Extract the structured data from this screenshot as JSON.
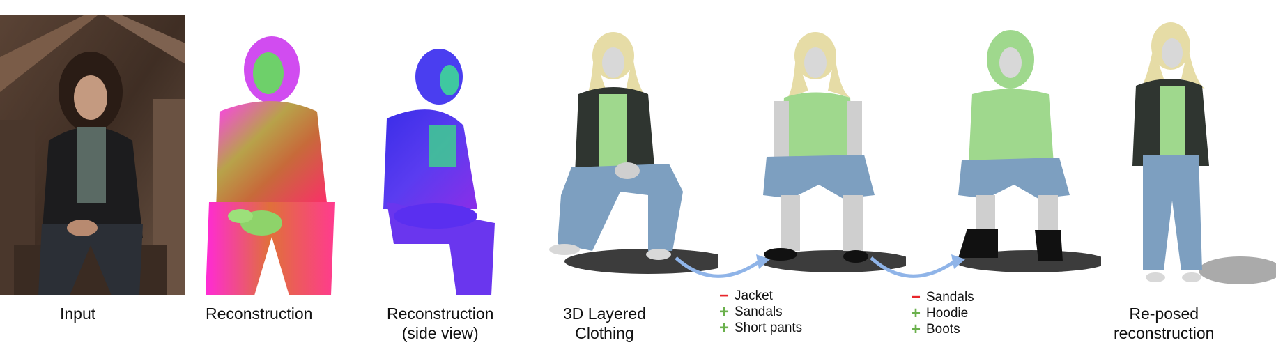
{
  "captions": {
    "input": "Input",
    "reconstruction": "Reconstruction",
    "side_line1": "Reconstruction",
    "side_line2": "(side view)",
    "layered_line1": "3D Layered",
    "layered_line2": "Clothing",
    "reposed_line1": "Re-posed",
    "reposed_line2": "reconstruction"
  },
  "edits_1": [
    {
      "sign": "−",
      "kind": "remove",
      "label": "Jacket"
    },
    {
      "sign": "+",
      "kind": "add",
      "label": "Sandals"
    },
    {
      "sign": "+",
      "kind": "add",
      "label": "Short pants"
    }
  ],
  "edits_2": [
    {
      "sign": "−",
      "kind": "remove",
      "label": "Sandals"
    },
    {
      "sign": "+",
      "kind": "add",
      "label": "Hoodie"
    },
    {
      "sign": "+",
      "kind": "add",
      "label": "Boots"
    }
  ],
  "colors": {
    "hair": "#e6dca6",
    "jacket": "#2f3530",
    "shirt": "#9fd88d",
    "jeans": "#7d9fc0",
    "skin": "#cfcfcf",
    "arrow": "#8fb4e8",
    "remove": "#e8262b",
    "add": "#6ab04c"
  }
}
